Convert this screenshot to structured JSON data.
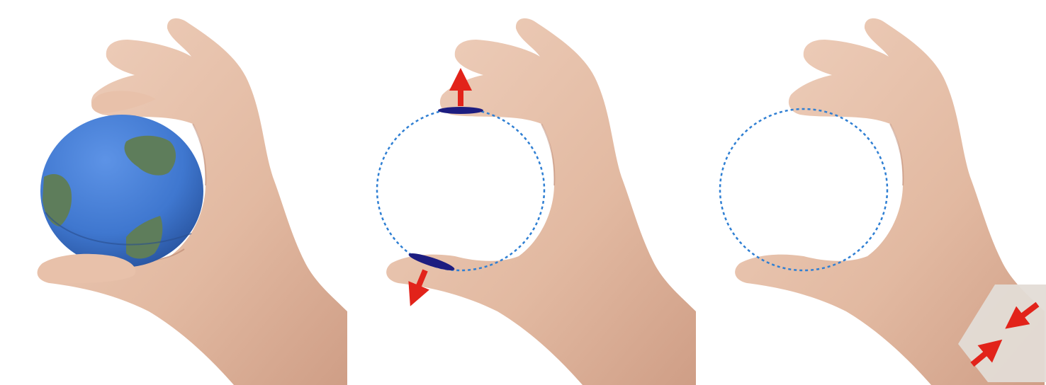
{
  "figure": {
    "panels": [
      {
        "id": "ball-grip",
        "object": "stress-ball-globe",
        "colors": {
          "skin": "#e7c2ac",
          "skin_shadow": "#c8977e",
          "ball": "#3f77cf",
          "ball_dark": "#2d5eab",
          "land": "#5e7d5b"
        }
      },
      {
        "id": "contact-forces",
        "object": "virtual-sphere-outline",
        "force_arrows": 2,
        "colors": {
          "outline": "#2f7fd3",
          "contact_pad": "#1d1d80",
          "arrow": "#e2231a"
        }
      },
      {
        "id": "wrist-band-feedback",
        "object": "virtual-sphere-outline",
        "band_arrows": 2,
        "colors": {
          "outline": "#2f7fd3",
          "band": "#e3dcd6",
          "arrow": "#e2231a"
        }
      }
    ]
  }
}
